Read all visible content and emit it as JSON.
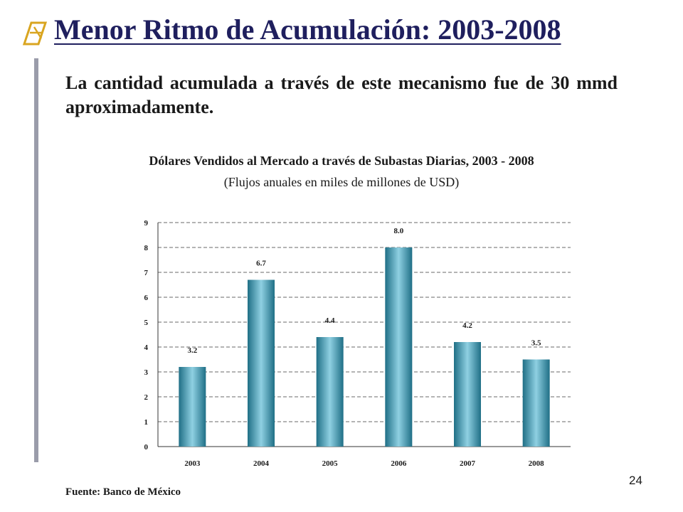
{
  "slide": {
    "title": "Menor Ritmo de Acumulación: 2003-2008",
    "intro": "La cantidad acumulada a través de este mecanismo fue de 30 mmd aproximadamente.",
    "source": "Fuente: Banco de México",
    "page_number": "24",
    "bullet_icon": "dollar-bullet-icon",
    "colors": {
      "title": "#1f1f5e",
      "bullet": "#d9a520",
      "bar": "#3f9bb3",
      "side_bar": "#9a9caa"
    }
  },
  "chart_data": {
    "type": "bar",
    "title": "Dólares Vendidos al Mercado a través de Subastas Diarias, 2003 - 2008",
    "subtitle": "(Flujos anuales en miles de millones de USD)",
    "categories": [
      "2003",
      "2004",
      "2005",
      "2006",
      "2007",
      "2008"
    ],
    "values": [
      3.2,
      6.7,
      4.4,
      8.0,
      4.2,
      3.5
    ],
    "data_labels": [
      "3.2",
      "6.7",
      "4.4",
      "8.0",
      "4.2",
      "3.5"
    ],
    "yticks": [
      0,
      1,
      2,
      3,
      4,
      5,
      6,
      7,
      8,
      9
    ],
    "ylim": [
      0,
      9
    ],
    "xlabel": "",
    "ylabel": "",
    "grid": "horizontal dashed",
    "legend": "none"
  }
}
